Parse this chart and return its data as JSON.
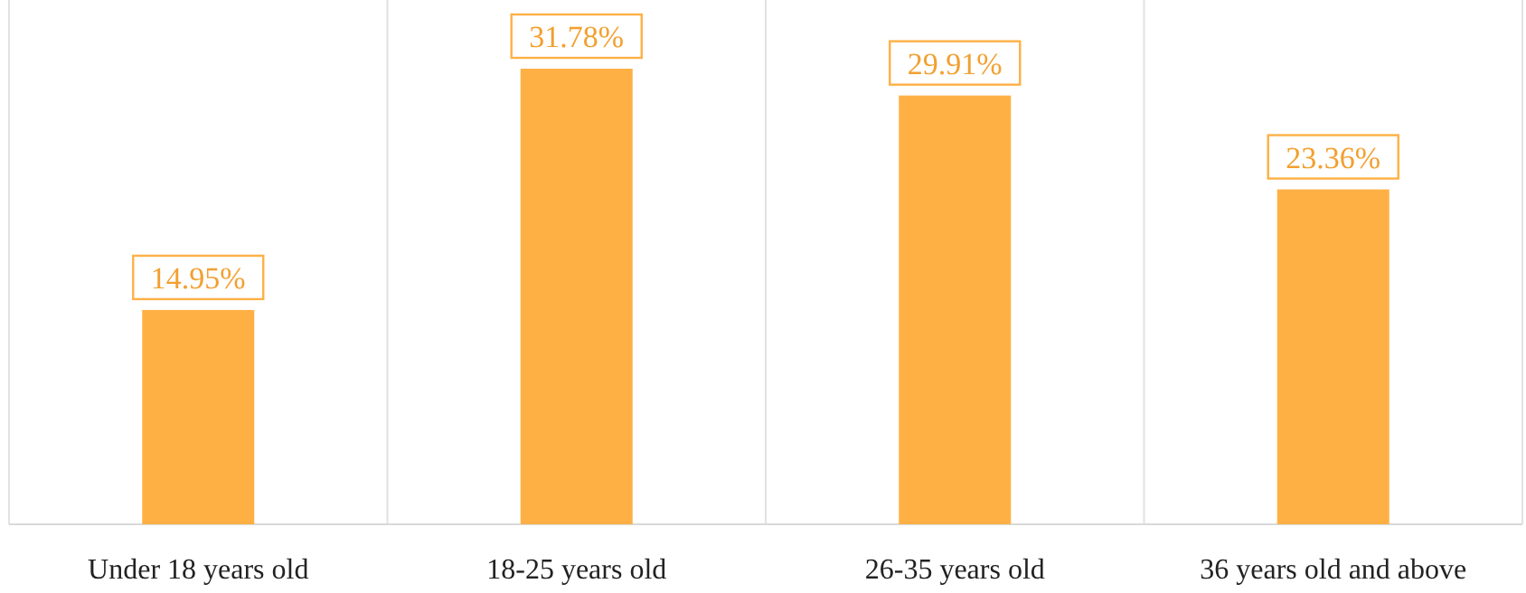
{
  "chart_data": {
    "type": "bar",
    "categories": [
      "Under 18 years old",
      "18-25 years old",
      "26-35 years old",
      "36 years old and above"
    ],
    "values": [
      14.95,
      31.78,
      29.91,
      23.36
    ],
    "value_labels": [
      "14.95%",
      "31.78%",
      "29.91%",
      "23.36%"
    ],
    "color": "#ffb045",
    "grid": "x"
  }
}
